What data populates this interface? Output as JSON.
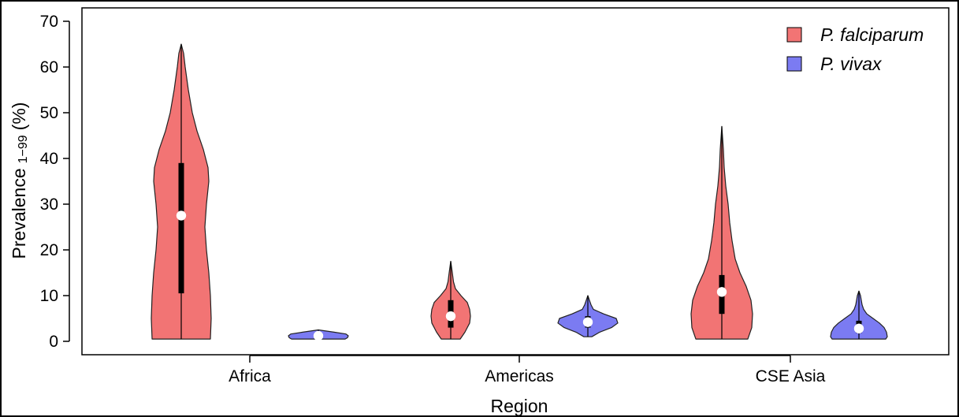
{
  "chart_data": {
    "type": "violin",
    "xlabel": "Region",
    "ylabel": "Prevalence",
    "ylabel_sub": "1−99",
    "ylabel_unit": "(%)",
    "ylim": [
      0,
      70
    ],
    "yticks": [
      "0",
      "10",
      "20",
      "30",
      "40",
      "50",
      "60",
      "70"
    ],
    "categories": [
      "Africa",
      "Americas",
      "CSE Asia"
    ],
    "legend_position": "top-right",
    "series": [
      {
        "name": "P. falciparum",
        "color": "#f27474",
        "groups": [
          {
            "min": 0.5,
            "q1": 10.5,
            "median": 27.5,
            "q3": 39,
            "max": 65
          },
          {
            "min": 0.5,
            "q1": 3,
            "median": 5.5,
            "q3": 9,
            "max": 17.5
          },
          {
            "min": 0.5,
            "q1": 6,
            "median": 10.8,
            "q3": 14.5,
            "max": 47
          }
        ]
      },
      {
        "name": "P. vivax",
        "color": "#7b7bf2",
        "groups": [
          {
            "min": 0.5,
            "q1": 0.8,
            "median": 1.2,
            "q3": 1.6,
            "max": 2.5
          },
          {
            "min": 1,
            "q1": 3,
            "median": 4.2,
            "q3": 5.5,
            "max": 10
          },
          {
            "min": 0.5,
            "q1": 1.8,
            "median": 2.8,
            "q3": 4.5,
            "max": 11
          }
        ]
      }
    ]
  }
}
